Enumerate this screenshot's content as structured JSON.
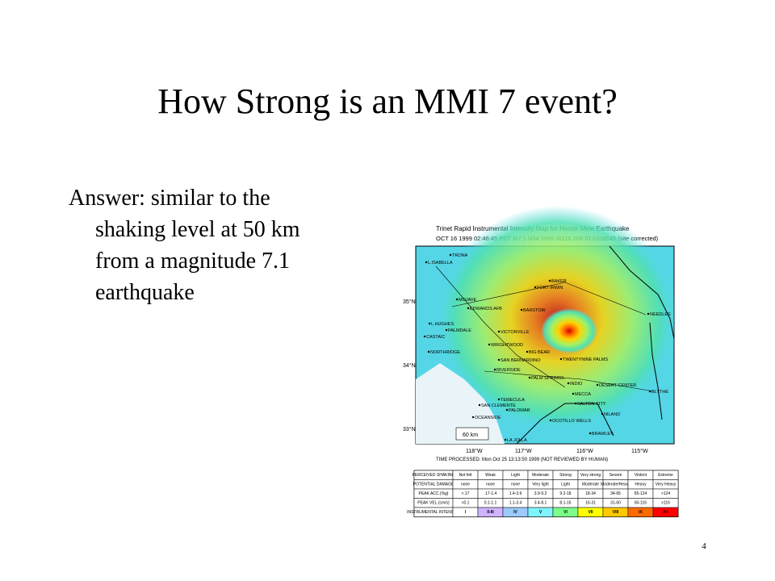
{
  "title": "How Strong is an MMI  7 event?",
  "body": {
    "lines": [
      "Answer: similar to the",
      "shaking level at 50 km",
      "from a magnitude 7.1",
      "earthquake"
    ]
  },
  "map": {
    "title": "Trinet Rapid Instrumental Intensity Map for Hector Mine Earthquake",
    "subtitle": "OCT 16 1999 02:46:45 PDT M7.1 N34.5936 W116.268 ID:9108645 (site corrected)",
    "lat_labels": [
      "35°N",
      "34°N",
      "33°N"
    ],
    "lon_labels": [
      "118°W",
      "117°W",
      "116°W",
      "115°W"
    ],
    "places": [
      "TRONA",
      "L.ISABELLA",
      "BAKER",
      "FORT IRWIN",
      "MOJAVE",
      "EDWARDS AFB",
      "BARSTOW",
      "NEEDLES",
      "L.HUGHES",
      "PALMDALE",
      "VICTORVILLE",
      "CASTAIC",
      "WRIGHTWOOD",
      "BIG BEAR",
      "NORTHRIDGE",
      "SAN BERNARDINO",
      "TWENTYNINE PALMS",
      "RIVERSIDE",
      "PALM SPRINGS",
      "INDIO",
      "DESERT CENTER",
      "BLYTHE",
      "MECCA",
      "TEMECULA",
      "SAN CLEMENTE",
      "SALTON CITY",
      "PALOMAR",
      "NILAND",
      "OCEANSIDE",
      "OCOTILLO WELLS",
      "BRAWLEY",
      "LA JOLLA"
    ],
    "scale": "60 km",
    "processed": "TIME PROCESSED: Mon Oct 25 13:13:50 1999 (NOT REVIEWED BY HUMAN)",
    "legend": {
      "rows": [
        {
          "header": "PERCEIVED SHAKING",
          "cells": [
            "Not felt",
            "Weak",
            "Light",
            "Moderate",
            "Strong",
            "Very strong",
            "Severe",
            "Violent",
            "Extreme"
          ]
        },
        {
          "header": "POTENTIAL DAMAGE",
          "cells": [
            "none",
            "none",
            "none",
            "Very light",
            "Light",
            "Moderate",
            "Moderate/Heavy",
            "Heavy",
            "Very Heavy"
          ]
        },
        {
          "header": "PEAK ACC.(%g)",
          "cells": [
            "<.17",
            ".17-1.4",
            "1.4-3.9",
            "3.9-9.2",
            "9.2-18",
            "18-34",
            "34-65",
            "65-124",
            ">124"
          ]
        },
        {
          "header": "PEAK VEL.(cm/s)",
          "cells": [
            "<0.1",
            "0.1-1.1",
            "1.1-3.4",
            "3.4-8.1",
            "8.1-16",
            "16-31",
            "31-60",
            "60-116",
            ">116"
          ]
        },
        {
          "header": "INSTRUMENTAL INTENSITY",
          "cells": [
            "I",
            "II-III",
            "IV",
            "V",
            "VI",
            "VII",
            "VIII",
            "IX",
            "X+"
          ]
        }
      ]
    }
  },
  "page_number": "4"
}
